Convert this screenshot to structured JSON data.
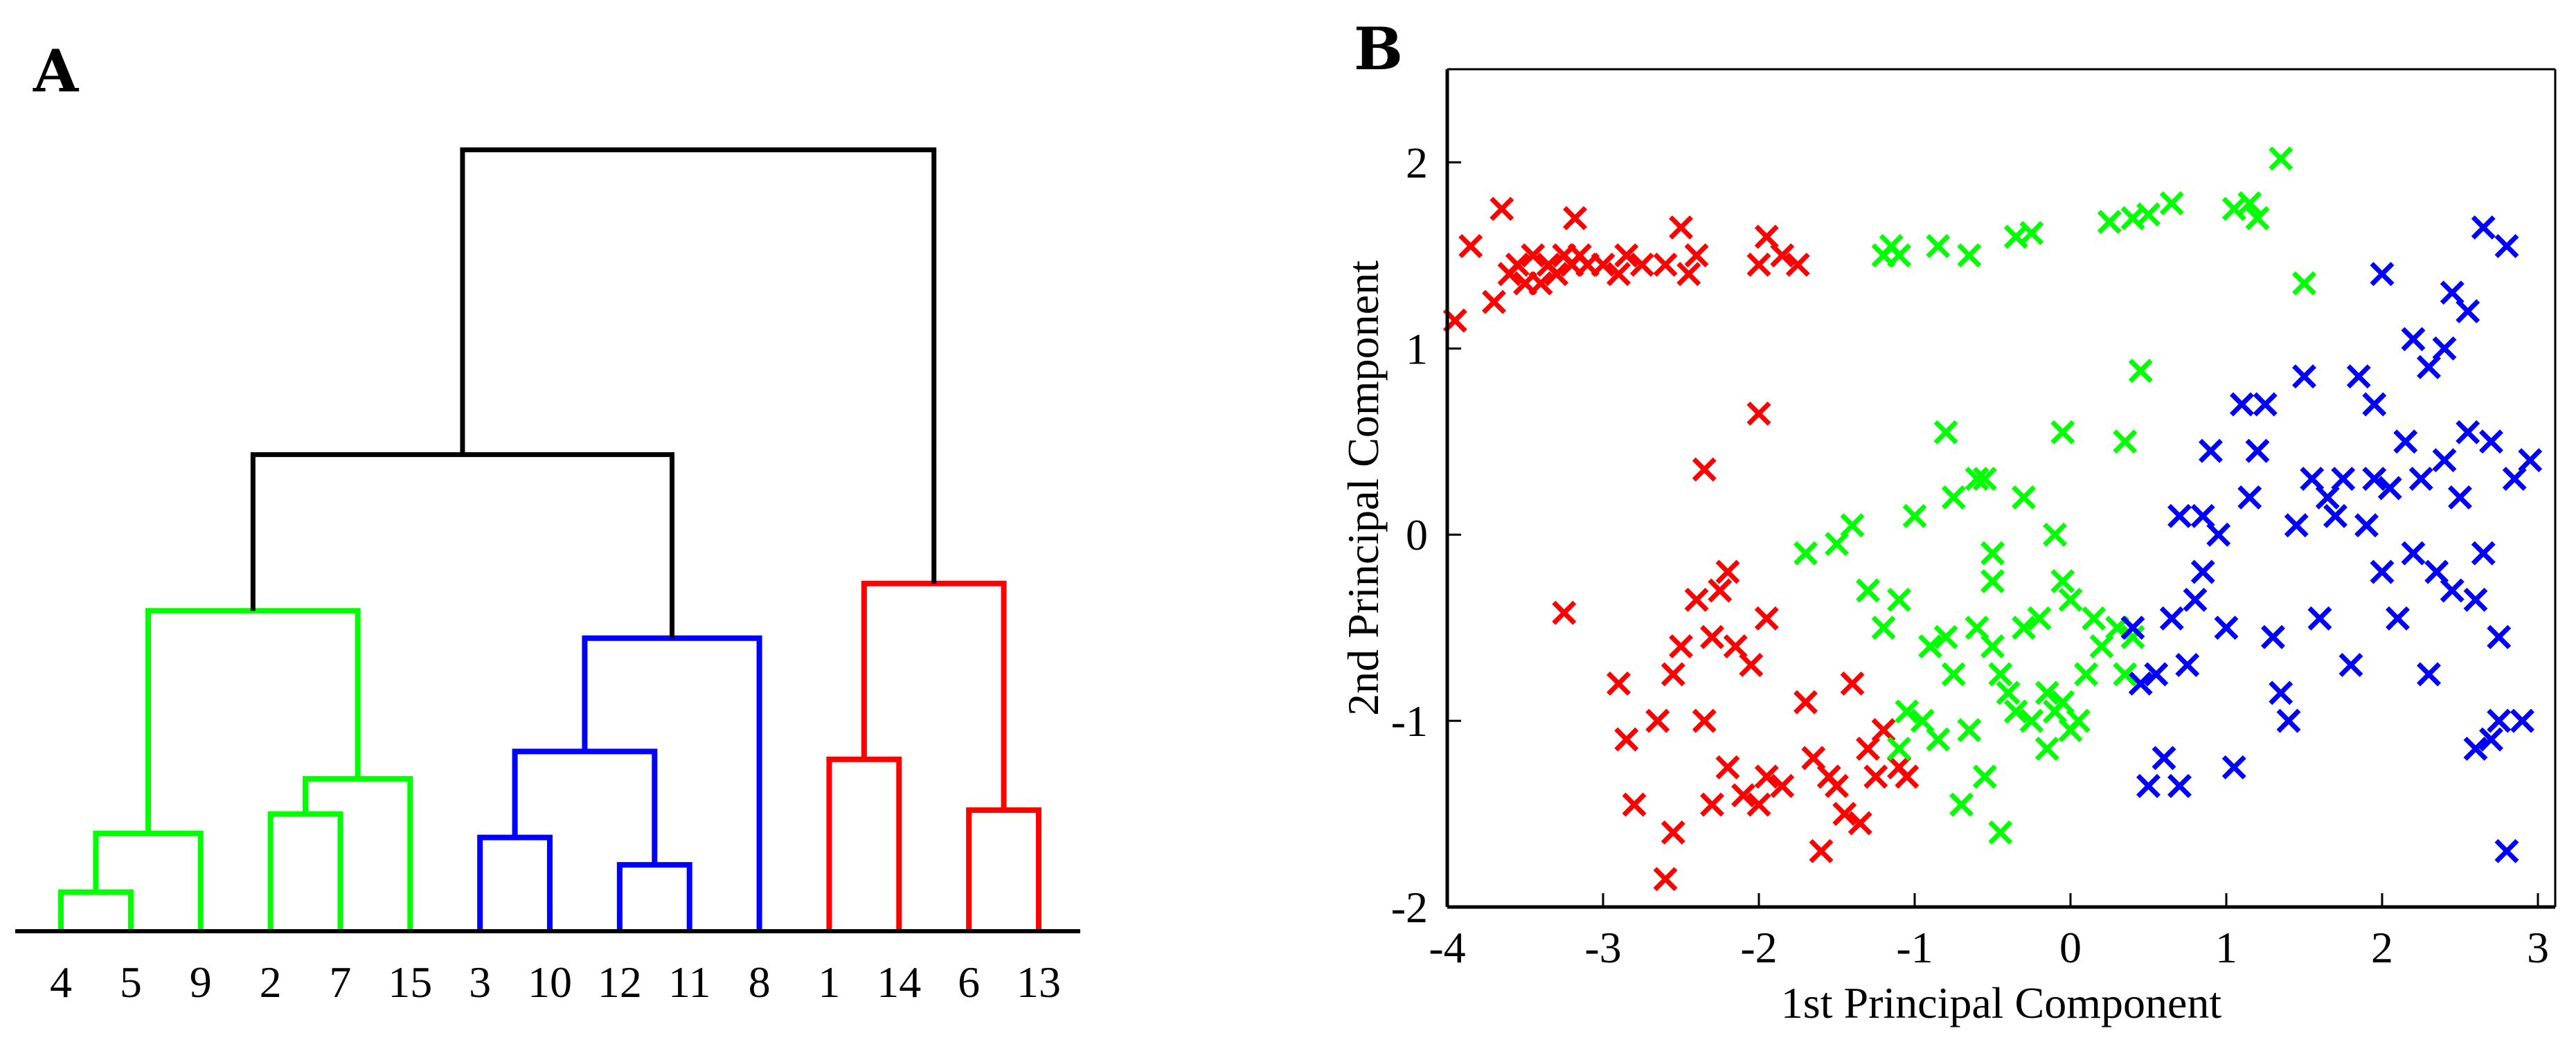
{
  "chart_data": [
    {
      "type": "dendrogram",
      "panel_label": "A",
      "leaf_labels": [
        "4",
        "5",
        "9",
        "2",
        "7",
        "15",
        "3",
        "10",
        "12",
        "11",
        "8",
        "1",
        "14",
        "6",
        "13"
      ],
      "colors": {
        "green": "#00ff00",
        "blue": "#0000ff",
        "red": "#ff0000",
        "root": "#000000"
      },
      "merges": [
        {
          "a": "L4",
          "b": "L5",
          "height": 1.0,
          "id": "g1",
          "color": "green"
        },
        {
          "a": "g1",
          "b": "L9",
          "height": 2.5,
          "id": "g2",
          "color": "green"
        },
        {
          "a": "L2",
          "b": "L7",
          "height": 3.0,
          "id": "g3",
          "color": "green"
        },
        {
          "a": "g3",
          "b": "L15",
          "height": 3.9,
          "id": "g4",
          "color": "green"
        },
        {
          "a": "g2",
          "b": "g4",
          "height": 8.2,
          "id": "G",
          "color": "green"
        },
        {
          "a": "L3",
          "b": "L10",
          "height": 2.4,
          "id": "b1",
          "color": "blue"
        },
        {
          "a": "L12",
          "b": "L11",
          "height": 1.7,
          "id": "b2",
          "color": "blue"
        },
        {
          "a": "b1",
          "b": "b2",
          "height": 4.6,
          "id": "b3",
          "color": "blue"
        },
        {
          "a": "b3",
          "b": "L8",
          "height": 7.5,
          "id": "B",
          "color": "blue"
        },
        {
          "a": "L1",
          "b": "L14",
          "height": 4.4,
          "id": "r1",
          "color": "red"
        },
        {
          "a": "L6",
          "b": "L13",
          "height": 3.1,
          "id": "r2",
          "color": "red"
        },
        {
          "a": "r1",
          "b": "r2",
          "height": 8.9,
          "id": "R",
          "color": "red"
        },
        {
          "a": "G",
          "b": "B",
          "height": 12.2,
          "id": "K1",
          "color": "root"
        },
        {
          "a": "K1",
          "b": "R",
          "height": 20.0,
          "id": "K2",
          "color": "root"
        }
      ],
      "ylim": [
        0,
        21
      ]
    },
    {
      "type": "scatter",
      "panel_label": "B",
      "xlabel": "1st Principal Component",
      "ylabel": "2nd Principal Component",
      "xlim": [
        -4,
        3
      ],
      "ylim": [
        -2,
        2.5
      ],
      "xticks": [
        "-4",
        "-3",
        "-2",
        "-1",
        "0",
        "1",
        "2",
        "3"
      ],
      "yticks": [
        "-2",
        "-1",
        "0",
        "1",
        "2"
      ],
      "marker": "x",
      "series": [
        {
          "name": "red",
          "color": "#ff0000",
          "points": [
            [
              -3.95,
              1.15
            ],
            [
              -3.85,
              1.55
            ],
            [
              -3.7,
              1.25
            ],
            [
              -3.65,
              1.75
            ],
            [
              -3.6,
              1.4
            ],
            [
              -3.55,
              1.45
            ],
            [
              -3.5,
              1.35
            ],
            [
              -3.45,
              1.5
            ],
            [
              -3.4,
              1.35
            ],
            [
              -3.35,
              1.45
            ],
            [
              -3.3,
              1.4
            ],
            [
              -3.25,
              1.5
            ],
            [
              -3.2,
              1.45
            ],
            [
              -3.18,
              1.7
            ],
            [
              -3.15,
              1.5
            ],
            [
              -3.1,
              1.45
            ],
            [
              -3.0,
              1.45
            ],
            [
              -2.9,
              1.4
            ],
            [
              -2.85,
              1.5
            ],
            [
              -2.75,
              1.45
            ],
            [
              -2.6,
              1.45
            ],
            [
              -2.5,
              1.65
            ],
            [
              -2.45,
              1.4
            ],
            [
              -2.4,
              1.5
            ],
            [
              -2.0,
              1.45
            ],
            [
              -1.95,
              1.6
            ],
            [
              -1.85,
              1.5
            ],
            [
              -1.75,
              1.45
            ],
            [
              -2.0,
              0.65
            ],
            [
              -2.35,
              0.35
            ],
            [
              -3.25,
              -0.42
            ],
            [
              -2.9,
              -0.8
            ],
            [
              -2.85,
              -1.1
            ],
            [
              -2.8,
              -1.45
            ],
            [
              -2.65,
              -1.0
            ],
            [
              -2.6,
              -1.85
            ],
            [
              -2.55,
              -0.75
            ],
            [
              -2.55,
              -1.6
            ],
            [
              -2.5,
              -0.6
            ],
            [
              -2.4,
              -0.35
            ],
            [
              -2.35,
              -1.0
            ],
            [
              -2.3,
              -0.55
            ],
            [
              -2.25,
              -0.3
            ],
            [
              -2.2,
              -0.2
            ],
            [
              -2.2,
              -1.25
            ],
            [
              -2.15,
              -0.6
            ],
            [
              -2.1,
              -1.4
            ],
            [
              -2.05,
              -0.7
            ],
            [
              -2.0,
              -1.45
            ],
            [
              -1.95,
              -1.3
            ],
            [
              -1.95,
              -0.45
            ],
            [
              -1.85,
              -1.35
            ],
            [
              -1.7,
              -0.9
            ],
            [
              -1.65,
              -1.2
            ],
            [
              -1.6,
              -1.7
            ],
            [
              -1.55,
              -1.3
            ],
            [
              -1.5,
              -1.35
            ],
            [
              -1.45,
              -1.5
            ],
            [
              -1.4,
              -0.8
            ],
            [
              -1.35,
              -1.55
            ],
            [
              -1.3,
              -1.15
            ],
            [
              -1.25,
              -1.3
            ],
            [
              -1.2,
              -1.05
            ],
            [
              -1.1,
              -1.25
            ],
            [
              -1.05,
              -1.3
            ],
            [
              -2.3,
              -1.45
            ]
          ]
        },
        {
          "name": "green",
          "color": "#00ff00",
          "points": [
            [
              -1.2,
              1.5
            ],
            [
              -1.15,
              1.55
            ],
            [
              -1.1,
              1.5
            ],
            [
              -0.85,
              1.55
            ],
            [
              -0.65,
              1.5
            ],
            [
              -0.35,
              1.6
            ],
            [
              -0.25,
              1.62
            ],
            [
              0.25,
              1.68
            ],
            [
              0.4,
              1.7
            ],
            [
              0.5,
              1.72
            ],
            [
              0.65,
              1.78
            ],
            [
              1.05,
              1.75
            ],
            [
              1.2,
              1.7
            ],
            [
              1.15,
              1.78
            ],
            [
              1.35,
              2.02
            ],
            [
              1.5,
              1.35
            ],
            [
              0.45,
              0.88
            ],
            [
              -0.8,
              0.55
            ],
            [
              -0.05,
              0.55
            ],
            [
              0.35,
              0.5
            ],
            [
              -0.75,
              0.2
            ],
            [
              -0.6,
              0.3
            ],
            [
              -0.55,
              0.3
            ],
            [
              -1.7,
              -0.1
            ],
            [
              -1.5,
              -0.05
            ],
            [
              -1.4,
              0.05
            ],
            [
              -1.3,
              -0.3
            ],
            [
              -1.1,
              -0.35
            ],
            [
              -1.0,
              0.1
            ],
            [
              -0.5,
              -0.1
            ],
            [
              -0.5,
              -0.25
            ],
            [
              -0.3,
              0.2
            ],
            [
              -0.1,
              0.0
            ],
            [
              -0.05,
              -0.25
            ],
            [
              0.0,
              -0.35
            ],
            [
              -1.2,
              -0.5
            ],
            [
              -0.9,
              -0.6
            ],
            [
              -0.8,
              -0.55
            ],
            [
              -0.75,
              -0.75
            ],
            [
              -0.6,
              -0.5
            ],
            [
              -0.5,
              -0.6
            ],
            [
              -0.45,
              -0.75
            ],
            [
              -0.4,
              -0.85
            ],
            [
              -0.35,
              -0.95
            ],
            [
              -0.3,
              -0.5
            ],
            [
              -0.25,
              -1.0
            ],
            [
              -0.2,
              -0.45
            ],
            [
              -0.15,
              -0.85
            ],
            [
              -0.1,
              -0.95
            ],
            [
              -0.05,
              -0.9
            ],
            [
              0.05,
              -1.0
            ],
            [
              0.1,
              -0.75
            ],
            [
              0.15,
              -0.45
            ],
            [
              0.2,
              -0.6
            ],
            [
              0.3,
              -0.5
            ],
            [
              0.4,
              -0.55
            ],
            [
              -0.95,
              -1.0
            ],
            [
              -0.85,
              -1.1
            ],
            [
              -0.65,
              -1.05
            ],
            [
              -0.55,
              -1.3
            ],
            [
              -0.7,
              -1.45
            ],
            [
              -0.45,
              -1.6
            ],
            [
              -1.1,
              -1.15
            ],
            [
              -1.05,
              -0.95
            ],
            [
              0.0,
              -1.05
            ],
            [
              0.35,
              -0.75
            ],
            [
              -0.15,
              -1.15
            ]
          ]
        },
        {
          "name": "blue",
          "color": "#0000ff",
          "points": [
            [
              0.4,
              -0.5
            ],
            [
              0.45,
              -0.8
            ],
            [
              0.55,
              -0.75
            ],
            [
              0.6,
              -1.2
            ],
            [
              0.5,
              -1.35
            ],
            [
              0.65,
              -0.45
            ],
            [
              0.7,
              -1.35
            ],
            [
              0.7,
              0.1
            ],
            [
              0.75,
              -0.7
            ],
            [
              0.8,
              -0.35
            ],
            [
              0.85,
              0.1
            ],
            [
              0.85,
              -0.2
            ],
            [
              0.9,
              0.45
            ],
            [
              0.95,
              0.0
            ],
            [
              1.0,
              -0.5
            ],
            [
              1.05,
              -1.25
            ],
            [
              1.1,
              0.7
            ],
            [
              1.15,
              0.2
            ],
            [
              1.2,
              0.45
            ],
            [
              1.25,
              0.7
            ],
            [
              1.3,
              -0.55
            ],
            [
              1.35,
              -0.85
            ],
            [
              1.4,
              -1.0
            ],
            [
              1.45,
              0.05
            ],
            [
              1.5,
              0.85
            ],
            [
              1.55,
              0.3
            ],
            [
              1.6,
              -0.45
            ],
            [
              1.65,
              0.2
            ],
            [
              1.7,
              0.1
            ],
            [
              1.75,
              0.3
            ],
            [
              1.8,
              -0.7
            ],
            [
              1.85,
              0.85
            ],
            [
              1.9,
              0.05
            ],
            [
              1.95,
              0.3
            ],
            [
              2.0,
              1.4
            ],
            [
              2.05,
              0.25
            ],
            [
              2.1,
              -0.45
            ],
            [
              2.15,
              0.5
            ],
            [
              2.2,
              1.05
            ],
            [
              2.25,
              0.3
            ],
            [
              2.3,
              0.9
            ],
            [
              2.35,
              -0.2
            ],
            [
              2.4,
              1.0
            ],
            [
              2.45,
              -0.3
            ],
            [
              2.5,
              0.2
            ],
            [
              2.55,
              0.55
            ],
            [
              2.6,
              -0.35
            ],
            [
              2.65,
              1.65
            ],
            [
              2.7,
              0.5
            ],
            [
              2.75,
              -0.55
            ],
            [
              2.8,
              1.55
            ],
            [
              2.85,
              0.3
            ],
            [
              2.9,
              -1.0
            ],
            [
              2.95,
              0.4
            ],
            [
              2.6,
              -1.15
            ],
            [
              2.7,
              -1.1
            ],
            [
              2.75,
              -1.0
            ],
            [
              2.8,
              -1.7
            ],
            [
              2.0,
              -0.2
            ],
            [
              2.3,
              -0.75
            ],
            [
              1.95,
              0.7
            ],
            [
              2.55,
              1.2
            ],
            [
              2.45,
              1.3
            ],
            [
              2.4,
              0.4
            ],
            [
              2.2,
              -0.1
            ],
            [
              2.65,
              -0.1
            ]
          ]
        }
      ]
    }
  ]
}
